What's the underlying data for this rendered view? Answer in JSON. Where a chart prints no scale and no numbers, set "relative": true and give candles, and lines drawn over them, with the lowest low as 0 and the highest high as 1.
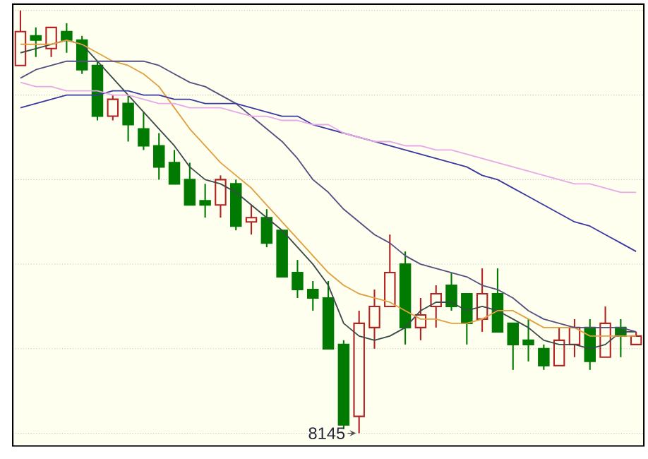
{
  "chart_data": {
    "type": "candlestick",
    "relative": true,
    "tick_labels": false,
    "grid": "y",
    "categories": [
      null,
      null,
      null,
      null,
      null,
      null,
      null,
      null,
      null,
      null,
      null,
      null,
      null,
      null,
      null,
      null,
      null,
      null,
      null,
      null,
      null,
      null,
      null,
      null,
      null,
      null,
      null,
      null,
      null,
      null,
      null,
      null,
      null,
      null,
      null,
      null,
      null,
      null,
      null,
      null,
      null
    ],
    "ohlc": [
      [
        0.87,
        1.0,
        0.87,
        0.95
      ],
      [
        0.94,
        0.96,
        0.89,
        0.93
      ],
      [
        0.91,
        0.96,
        0.89,
        0.96
      ],
      [
        0.95,
        0.97,
        0.9,
        0.93
      ],
      [
        0.93,
        0.94,
        0.85,
        0.86
      ],
      [
        0.87,
        0.88,
        0.74,
        0.75
      ],
      [
        0.75,
        0.8,
        0.74,
        0.79
      ],
      [
        0.78,
        0.8,
        0.69,
        0.73
      ],
      [
        0.72,
        0.76,
        0.67,
        0.68
      ],
      [
        0.68,
        0.71,
        0.6,
        0.63
      ],
      [
        0.64,
        0.67,
        0.59,
        0.59
      ],
      [
        0.6,
        0.64,
        0.54,
        0.54
      ],
      [
        0.55,
        0.59,
        0.51,
        0.54
      ],
      [
        0.54,
        0.61,
        0.51,
        0.6
      ],
      [
        0.59,
        0.6,
        0.48,
        0.49
      ],
      [
        0.5,
        0.54,
        0.47,
        0.51
      ],
      [
        0.51,
        0.53,
        0.44,
        0.45
      ],
      [
        0.48,
        0.48,
        0.37,
        0.37
      ],
      [
        0.38,
        0.41,
        0.32,
        0.34
      ],
      [
        0.34,
        0.36,
        0.29,
        0.32
      ],
      [
        0.32,
        0.36,
        0.2,
        0.2
      ],
      [
        0.21,
        0.22,
        0.01,
        0.02
      ],
      [
        0.04,
        0.29,
        0.0,
        0.26
      ],
      [
        0.25,
        0.34,
        0.2,
        0.3
      ],
      [
        0.3,
        0.47,
        0.3,
        0.38
      ],
      [
        0.4,
        0.43,
        0.21,
        0.25
      ],
      [
        0.25,
        0.32,
        0.22,
        0.28
      ],
      [
        0.3,
        0.35,
        0.25,
        0.33
      ],
      [
        0.35,
        0.38,
        0.29,
        0.3
      ],
      [
        0.33,
        0.33,
        0.21,
        0.26
      ],
      [
        0.27,
        0.39,
        0.24,
        0.33
      ],
      [
        0.33,
        0.39,
        0.24,
        0.24
      ],
      [
        0.26,
        0.26,
        0.15,
        0.21
      ],
      [
        0.22,
        0.27,
        0.17,
        0.21
      ],
      [
        0.2,
        0.21,
        0.15,
        0.16
      ],
      [
        0.16,
        0.25,
        0.16,
        0.22
      ],
      [
        0.21,
        0.27,
        0.18,
        0.25
      ],
      [
        0.25,
        0.27,
        0.15,
        0.17
      ],
      [
        0.18,
        0.3,
        0.18,
        0.26
      ],
      [
        0.25,
        0.27,
        0.18,
        0.23
      ],
      [
        0.21,
        0.24,
        0.21,
        0.23
      ]
    ],
    "colors": [
      "#b22222",
      "#007a00",
      "#b22222",
      "#007a00",
      "#007a00",
      "#007a00",
      "#b22222",
      "#007a00",
      "#007a00",
      "#007a00",
      "#007a00",
      "#007a00",
      "#007a00",
      "#b22222",
      "#007a00",
      "#b22222",
      "#007a00",
      "#007a00",
      "#007a00",
      "#007a00",
      "#007a00",
      "#007a00",
      "#b22222",
      "#b22222",
      "#b22222",
      "#007a00",
      "#b22222",
      "#b22222",
      "#007a00",
      "#007a00",
      "#b22222",
      "#007a00",
      "#007a00",
      "#007a00",
      "#007a00",
      "#b22222",
      "#b22222",
      "#007a00",
      "#b22222",
      "#007a00",
      "#b22222"
    ],
    "series": [
      {
        "type": "line",
        "color": "#3a4a4a",
        "values": [
          0.9,
          0.91,
          0.92,
          0.93,
          0.92,
          0.88,
          0.84,
          0.8,
          0.76,
          0.72,
          0.68,
          0.63,
          0.6,
          0.59,
          0.57,
          0.54,
          0.51,
          0.48,
          0.44,
          0.4,
          0.35,
          0.26,
          0.23,
          0.22,
          0.23,
          0.25,
          0.29,
          0.31,
          0.31,
          0.29,
          0.3,
          0.29,
          0.27,
          0.25,
          0.22,
          0.21,
          0.21,
          0.2,
          0.21,
          0.24,
          0.24
        ]
      },
      {
        "type": "line",
        "color": "#e0a040",
        "values": [
          0.92,
          0.92,
          0.92,
          0.93,
          0.92,
          0.9,
          0.88,
          0.87,
          0.85,
          0.82,
          0.77,
          0.72,
          0.68,
          0.64,
          0.61,
          0.58,
          0.54,
          0.5,
          0.46,
          0.42,
          0.38,
          0.35,
          0.33,
          0.32,
          0.31,
          0.29,
          0.27,
          0.27,
          0.26,
          0.26,
          0.27,
          0.29,
          0.29,
          0.27,
          0.25,
          0.25,
          0.25,
          0.23,
          0.23,
          0.23,
          0.23
        ]
      },
      {
        "type": "line",
        "color": "#555080",
        "values": [
          0.84,
          0.86,
          0.87,
          0.88,
          0.88,
          0.88,
          0.88,
          0.88,
          0.88,
          0.87,
          0.85,
          0.83,
          0.82,
          0.8,
          0.78,
          0.75,
          0.72,
          0.69,
          0.65,
          0.6,
          0.57,
          0.53,
          0.5,
          0.47,
          0.45,
          0.42,
          0.4,
          0.39,
          0.38,
          0.37,
          0.35,
          0.34,
          0.32,
          0.29,
          0.27,
          0.26,
          0.25,
          0.25,
          0.25,
          0.25,
          0.24
        ]
      },
      {
        "type": "line",
        "color": "#3a3aa0",
        "values": [
          0.77,
          0.78,
          0.79,
          0.8,
          0.8,
          0.8,
          0.81,
          0.81,
          0.8,
          0.8,
          0.79,
          0.79,
          0.78,
          0.78,
          0.78,
          0.77,
          0.76,
          0.75,
          0.75,
          0.73,
          0.72,
          0.71,
          0.7,
          0.69,
          0.68,
          0.67,
          0.66,
          0.65,
          0.64,
          0.63,
          0.61,
          0.6,
          0.58,
          0.56,
          0.54,
          0.52,
          0.5,
          0.49,
          0.47,
          0.45,
          0.43
        ]
      },
      {
        "type": "line",
        "color": "#e8a8e8",
        "values": [
          0.83,
          0.82,
          0.82,
          0.81,
          0.81,
          0.81,
          0.8,
          0.8,
          0.79,
          0.78,
          0.78,
          0.77,
          0.77,
          0.77,
          0.76,
          0.75,
          0.75,
          0.74,
          0.74,
          0.73,
          0.73,
          0.71,
          0.7,
          0.69,
          0.69,
          0.68,
          0.68,
          0.67,
          0.67,
          0.66,
          0.65,
          0.64,
          0.63,
          0.62,
          0.61,
          0.6,
          0.59,
          0.59,
          0.58,
          0.57,
          0.57
        ]
      }
    ],
    "annotations": [
      "8145"
    ]
  }
}
